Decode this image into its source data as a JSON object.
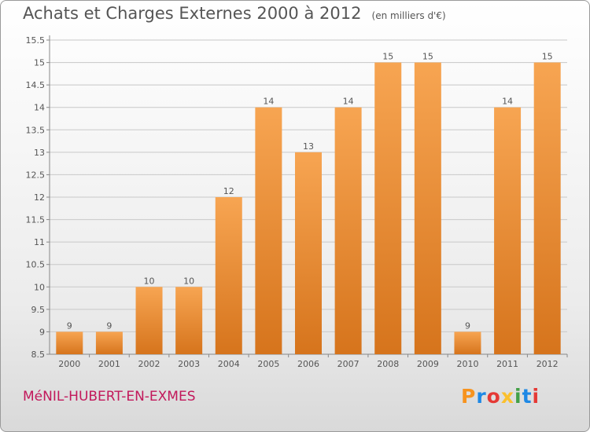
{
  "header": {
    "title": "Achats et Charges Externes 2000 à 2012",
    "unit": "(en milliers d'€)"
  },
  "footer": {
    "commune": "MéNIL-HUBERT-EN-EXMES"
  },
  "logo": {
    "text": "Proxiti",
    "letter_colors": [
      "#f7931e",
      "#1e88e5",
      "#e53935",
      "#fbc02d",
      "#43a047",
      "#1e88e5",
      "#e53935"
    ]
  },
  "colors": {
    "bar_light": "#f7a552",
    "bar_dark": "#d6741c",
    "grid": "#c8c8c8",
    "axis": "#888888",
    "text": "#555555",
    "commune": "#c2185b"
  },
  "chart_data": {
    "type": "bar",
    "title": "Achats et Charges Externes 2000 à 2012",
    "subtitle": "(en milliers d'€)",
    "categories": [
      "2000",
      "2001",
      "2002",
      "2003",
      "2004",
      "2005",
      "2006",
      "2007",
      "2008",
      "2009",
      "2010",
      "2011",
      "2012"
    ],
    "values": [
      9,
      9,
      10,
      10,
      12,
      14,
      13,
      14,
      15,
      15,
      9,
      14,
      15
    ],
    "value_labels": [
      "9",
      "9",
      "10",
      "10",
      "12",
      "14",
      "13",
      "14",
      "15",
      "15",
      "9",
      "14",
      "15"
    ],
    "ylim": [
      8.5,
      15.5
    ],
    "yticks": [
      8.5,
      9,
      9.5,
      10,
      10.5,
      11,
      11.5,
      12,
      12.5,
      13,
      13.5,
      14,
      14.5,
      15,
      15.5
    ],
    "ytick_labels": [
      "8.5",
      "9",
      "9.5",
      "10",
      "10.5",
      "11",
      "11.5",
      "12",
      "12.5",
      "13",
      "13.5",
      "14",
      "14.5",
      "15",
      "15.5"
    ],
    "grid": true,
    "legend": "none"
  }
}
